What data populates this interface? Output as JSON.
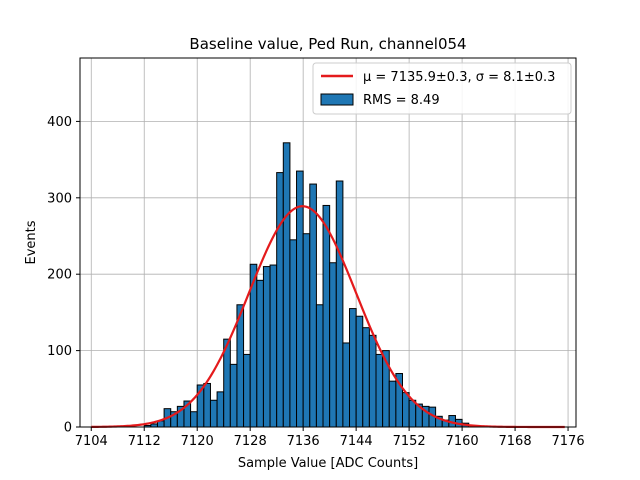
{
  "chart_data": {
    "type": "bar",
    "title": "Baseline value, Ped Run, channel054",
    "xlabel": "Sample Value [ADC Counts]",
    "ylabel": "Events",
    "xlim": [
      7102.3,
      7177.2
    ],
    "ylim": [
      0,
      483
    ],
    "grid": true,
    "xticks": [
      7104,
      7112,
      7120,
      7128,
      7136,
      7144,
      7152,
      7160,
      7168,
      7176
    ],
    "yticks": [
      0,
      100,
      200,
      300,
      400
    ],
    "bin_width": 1,
    "histogram": {
      "name": "RMS = 8.49",
      "color": "#1f77b4",
      "edge_color": "#000000",
      "bin_starts": [
        7112,
        7113,
        7114,
        7115,
        7116,
        7117,
        7118,
        7119,
        7120,
        7121,
        7122,
        7123,
        7124,
        7125,
        7126,
        7127,
        7128,
        7129,
        7130,
        7131,
        7132,
        7133,
        7134,
        7135,
        7136,
        7137,
        7138,
        7139,
        7140,
        7141,
        7142,
        7143,
        7144,
        7145,
        7146,
        7147,
        7148,
        7149,
        7150,
        7151,
        7152,
        7153,
        7154,
        7155,
        7156,
        7157,
        7158,
        7159,
        7160
      ],
      "counts": [
        2,
        4,
        8,
        24,
        20,
        27,
        34,
        20,
        55,
        57,
        35,
        46,
        115,
        82,
        160,
        95,
        213,
        192,
        210,
        212,
        333,
        372,
        245,
        335,
        253,
        318,
        160,
        290,
        215,
        322,
        110,
        155,
        145,
        130,
        120,
        95,
        100,
        60,
        70,
        45,
        35,
        30,
        27,
        26,
        14,
        9,
        15,
        10,
        5
      ]
    },
    "fit": {
      "name": "μ = 7135.9±0.3, σ = 8.1±0.3",
      "color": "#e41a1c",
      "mu": 7135.9,
      "sigma": 8.1,
      "amplitude": 289,
      "x_range": [
        7104,
        7175.5
      ]
    },
    "legend": {
      "location": "top-right",
      "entries": [
        {
          "label": "μ = 7135.9±0.3, σ = 8.1±0.3",
          "kind": "line"
        },
        {
          "label": "RMS = 8.49",
          "kind": "patch"
        }
      ]
    }
  }
}
